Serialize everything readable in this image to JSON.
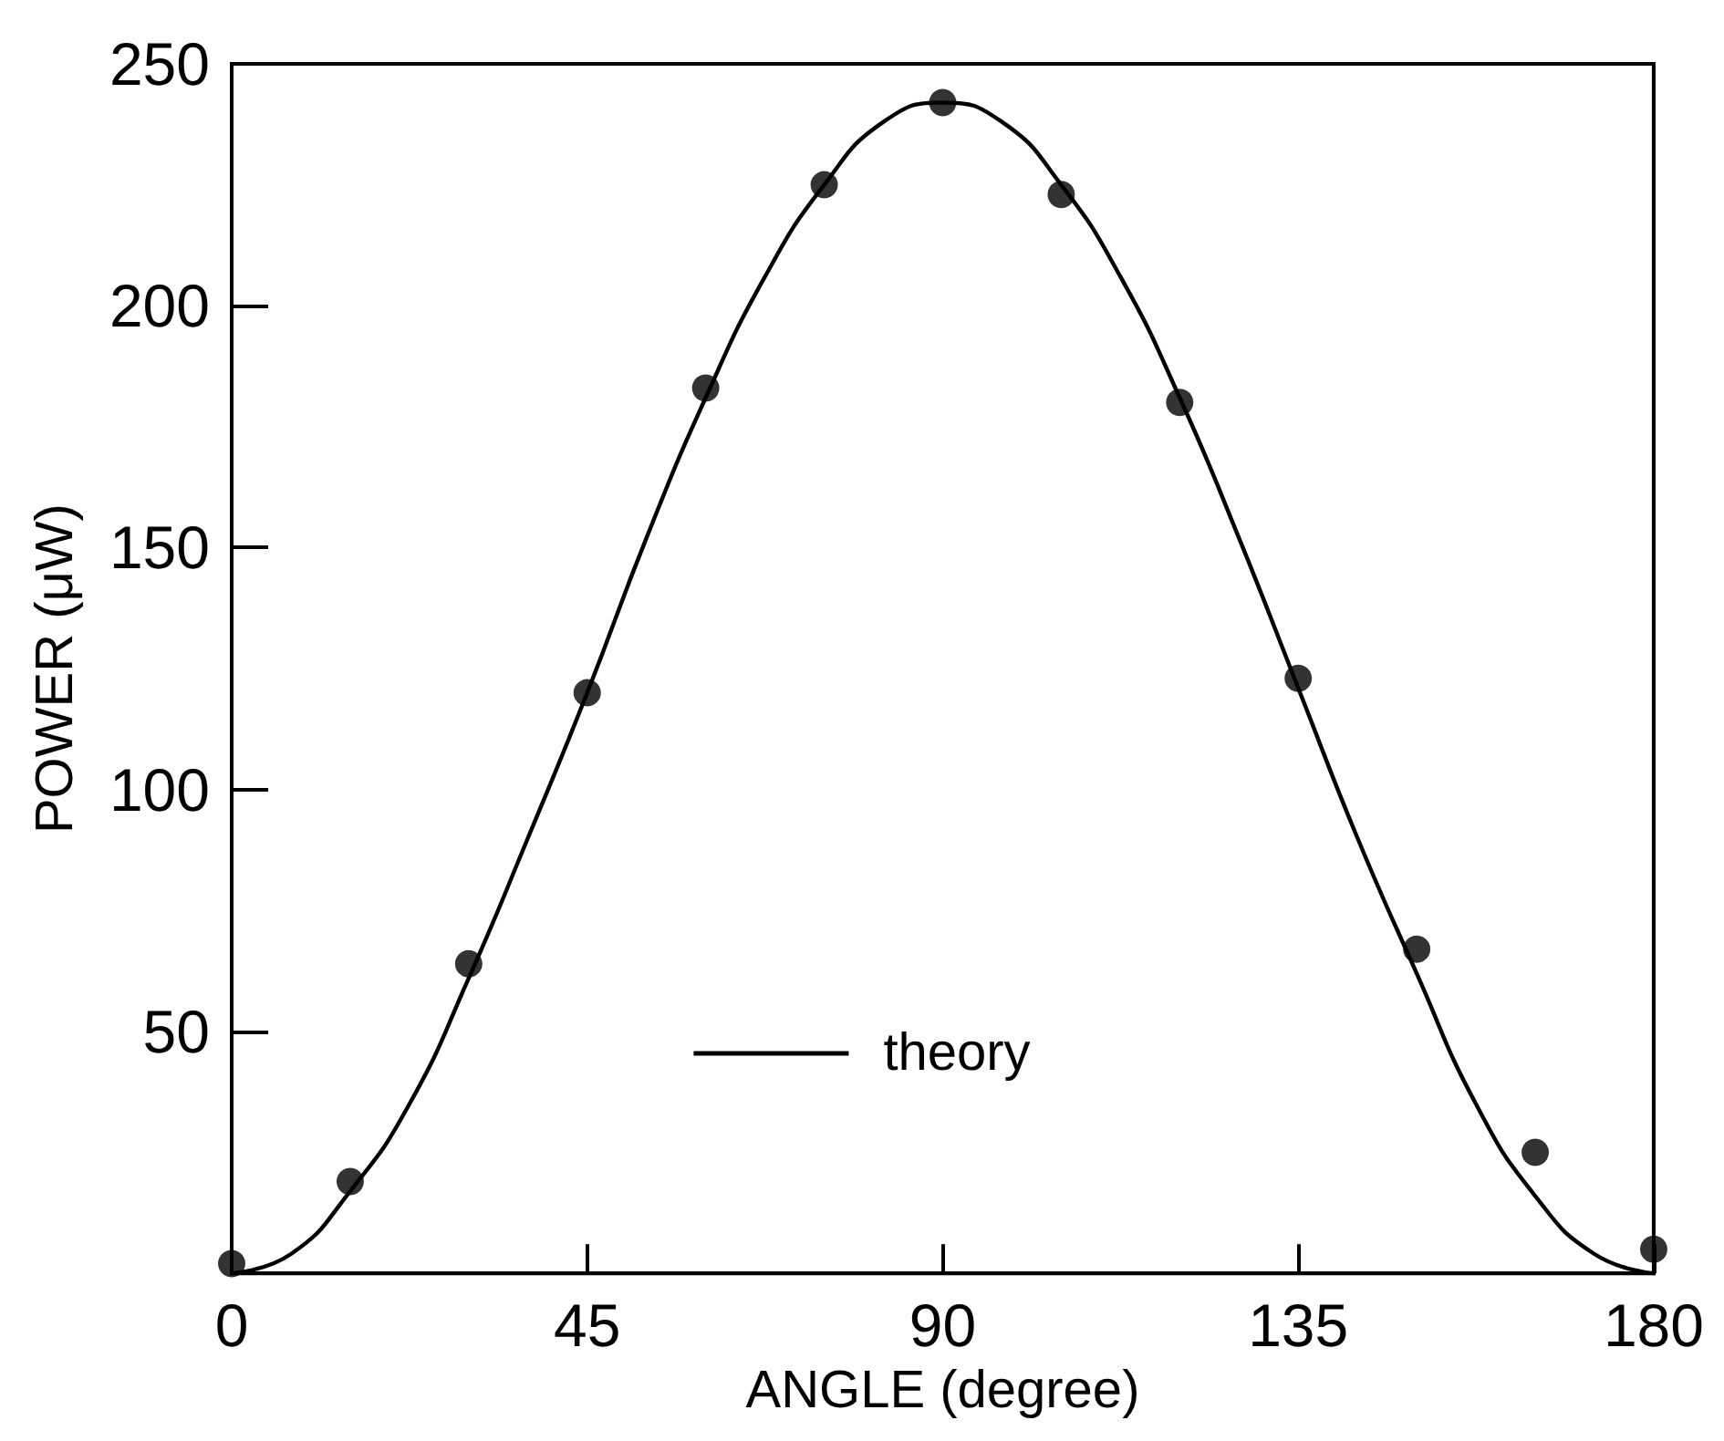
{
  "chart_data": {
    "type": "scatter",
    "xlabel": "ANGLE (degree)",
    "ylabel": "POWER (μW)",
    "xlim": [
      0,
      180
    ],
    "xticks": [
      0,
      45,
      90,
      135,
      180
    ],
    "ylim": [
      0,
      250
    ],
    "yticks": [
      50,
      100,
      150,
      200,
      250
    ],
    "grid": false,
    "legend": "bottom",
    "marker": "circle",
    "series": [
      {
        "type": "scatter",
        "color": "#000000",
        "x": [
          0,
          15,
          30,
          45,
          60,
          75,
          90,
          105,
          120,
          135,
          150,
          165,
          180
        ],
        "values": [
          2,
          19,
          64,
          120,
          183,
          225,
          242,
          223,
          180,
          123,
          67,
          25,
          5
        ]
      },
      {
        "type": "line",
        "name": "theory",
        "color": "#000000",
        "marker": "none",
        "line_style": "solid",
        "x": [
          0,
          7.5,
          15,
          22.5,
          30,
          37.5,
          45,
          52.5,
          60,
          67.5,
          75,
          82.5,
          90,
          97.5,
          105,
          112.5,
          120,
          127.5,
          135,
          142.5,
          150,
          157.5,
          165,
          172.5,
          180
        ],
        "values": [
          0,
          4,
          17,
          35,
          61,
          90,
          120,
          152,
          181,
          206,
          225,
          238,
          242,
          238,
          225,
          206,
          181,
          152,
          121,
          90,
          62,
          35,
          16,
          4,
          0
        ]
      }
    ]
  }
}
